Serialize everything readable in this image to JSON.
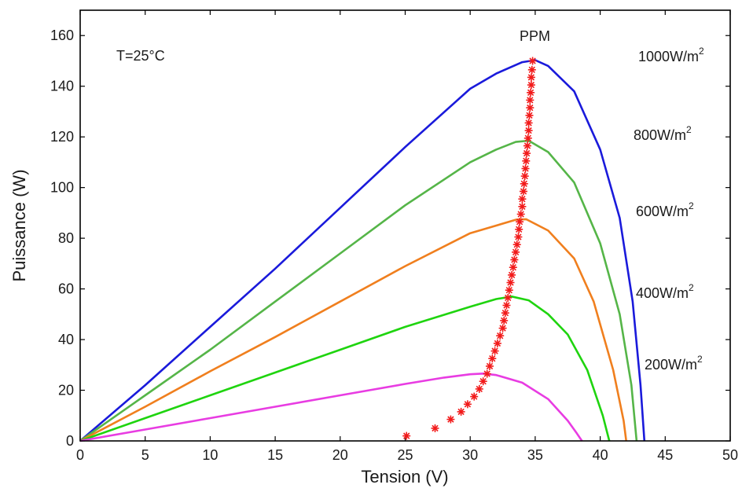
{
  "chart_data": {
    "type": "line",
    "title": "",
    "xlabel": "Tension (V)",
    "ylabel": "Puissance (W)",
    "xlim": [
      0,
      50
    ],
    "ylim": [
      0,
      170
    ],
    "xticks": [
      0,
      5,
      10,
      15,
      20,
      25,
      30,
      35,
      40,
      45,
      50
    ],
    "yticks": [
      0,
      20,
      40,
      60,
      80,
      100,
      120,
      140,
      160
    ],
    "grid": false,
    "annotations": {
      "temperature": "T=25°C",
      "mpp_label": "PPM"
    },
    "series": [
      {
        "name": "1000W/m2",
        "label_main": "1000W/m",
        "label_sup": "2",
        "color": "#1a1adb",
        "points": [
          [
            0,
            0
          ],
          [
            5,
            22
          ],
          [
            10,
            45
          ],
          [
            15,
            68
          ],
          [
            20,
            92
          ],
          [
            25,
            116
          ],
          [
            30,
            139
          ],
          [
            32,
            145
          ],
          [
            34,
            149.5
          ],
          [
            35,
            150.3
          ],
          [
            36,
            148
          ],
          [
            38,
            138
          ],
          [
            40,
            115
          ],
          [
            41.5,
            88
          ],
          [
            42.5,
            55
          ],
          [
            43.1,
            22
          ],
          [
            43.4,
            0
          ]
        ]
      },
      {
        "name": "800W/m2",
        "label_main": "800W/m",
        "label_sup": "2",
        "color": "#55b548",
        "points": [
          [
            0,
            0
          ],
          [
            5,
            18
          ],
          [
            10,
            36
          ],
          [
            15,
            55
          ],
          [
            20,
            74
          ],
          [
            25,
            93
          ],
          [
            30,
            110
          ],
          [
            32,
            115
          ],
          [
            33.5,
            118
          ],
          [
            34.5,
            118.5
          ],
          [
            36,
            114
          ],
          [
            38,
            102
          ],
          [
            40,
            78
          ],
          [
            41.5,
            50
          ],
          [
            42.4,
            22
          ],
          [
            42.8,
            0
          ]
        ]
      },
      {
        "name": "600W/m2",
        "label_main": "600W/m",
        "label_sup": "2",
        "color": "#f07f1e",
        "points": [
          [
            0,
            0
          ],
          [
            5,
            13.5
          ],
          [
            10,
            27.5
          ],
          [
            15,
            41
          ],
          [
            20,
            55
          ],
          [
            25,
            69
          ],
          [
            30,
            82
          ],
          [
            32,
            85
          ],
          [
            33.5,
            87.3
          ],
          [
            34.3,
            87.5
          ],
          [
            36,
            83
          ],
          [
            38,
            72
          ],
          [
            39.5,
            55
          ],
          [
            41,
            28
          ],
          [
            41.8,
            8
          ],
          [
            42,
            0
          ]
        ]
      },
      {
        "name": "400W/m2",
        "label_main": "400W/m",
        "label_sup": "2",
        "color": "#1fd40f",
        "points": [
          [
            0,
            0
          ],
          [
            5,
            9
          ],
          [
            10,
            18
          ],
          [
            15,
            27
          ],
          [
            20,
            36
          ],
          [
            25,
            45
          ],
          [
            30,
            53
          ],
          [
            32,
            56
          ],
          [
            33.2,
            57
          ],
          [
            34.5,
            55.5
          ],
          [
            36,
            50
          ],
          [
            37.5,
            42
          ],
          [
            39,
            28
          ],
          [
            40.2,
            10
          ],
          [
            40.7,
            0
          ]
        ]
      },
      {
        "name": "200W/m2",
        "label_main": "200W/m",
        "label_sup": "2",
        "color": "#e83ce2",
        "points": [
          [
            0,
            0
          ],
          [
            5,
            4.5
          ],
          [
            10,
            9
          ],
          [
            15,
            13.5
          ],
          [
            20,
            18
          ],
          [
            25,
            22.5
          ],
          [
            28,
            25
          ],
          [
            30,
            26.3
          ],
          [
            31,
            26.6
          ],
          [
            32,
            26
          ],
          [
            34,
            23
          ],
          [
            36,
            16.5
          ],
          [
            37.5,
            8
          ],
          [
            38.2,
            3
          ],
          [
            38.6,
            0
          ]
        ]
      },
      {
        "name": "PPM",
        "color": "#f21a1a",
        "marker": "asterisk",
        "points": [
          [
            25.1,
            2
          ],
          [
            27.3,
            5
          ],
          [
            28.5,
            8.5
          ],
          [
            29.3,
            11.5
          ],
          [
            29.8,
            14.5
          ],
          [
            30.3,
            17.5
          ],
          [
            30.7,
            20.5
          ],
          [
            31,
            23.5
          ],
          [
            31.3,
            26.5
          ],
          [
            31.5,
            29.5
          ],
          [
            31.7,
            32.5
          ],
          [
            31.9,
            35.5
          ],
          [
            32.1,
            38.5
          ],
          [
            32.3,
            41.5
          ],
          [
            32.5,
            44.5
          ],
          [
            32.6,
            47.5
          ],
          [
            32.7,
            50.5
          ],
          [
            32.8,
            53.5
          ],
          [
            32.9,
            56.5
          ],
          [
            33,
            59.5
          ],
          [
            33.1,
            62.5
          ],
          [
            33.2,
            65.5
          ],
          [
            33.3,
            68.5
          ],
          [
            33.4,
            71.5
          ],
          [
            33.5,
            74.5
          ],
          [
            33.6,
            77.5
          ],
          [
            33.7,
            80.5
          ],
          [
            33.75,
            83.5
          ],
          [
            33.8,
            86.5
          ],
          [
            33.9,
            89.5
          ],
          [
            34,
            92.5
          ],
          [
            34,
            95.5
          ],
          [
            34.1,
            98.5
          ],
          [
            34.15,
            101.5
          ],
          [
            34.2,
            104.5
          ],
          [
            34.25,
            107.5
          ],
          [
            34.3,
            110.5
          ],
          [
            34.35,
            113.5
          ],
          [
            34.4,
            116.5
          ],
          [
            34.45,
            119.5
          ],
          [
            34.5,
            122.5
          ],
          [
            34.5,
            125.5
          ],
          [
            34.55,
            128.5
          ],
          [
            34.6,
            131.5
          ],
          [
            34.6,
            134.5
          ],
          [
            34.65,
            137.5
          ],
          [
            34.7,
            140.5
          ],
          [
            34.7,
            143.5
          ],
          [
            34.75,
            146.5
          ],
          [
            34.8,
            150
          ]
        ]
      }
    ]
  }
}
